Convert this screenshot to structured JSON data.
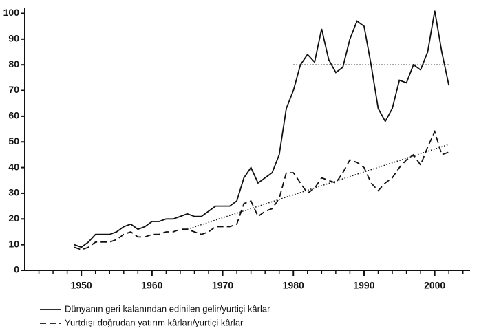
{
  "chart_data": {
    "type": "line",
    "x": [
      1949,
      1950,
      1951,
      1952,
      1953,
      1954,
      1955,
      1956,
      1957,
      1958,
      1959,
      1960,
      1961,
      1962,
      1963,
      1964,
      1965,
      1966,
      1967,
      1968,
      1969,
      1970,
      1971,
      1972,
      1973,
      1974,
      1975,
      1976,
      1977,
      1978,
      1979,
      1980,
      1981,
      1982,
      1983,
      1984,
      1985,
      1986,
      1987,
      1988,
      1989,
      1990,
      1991,
      1992,
      1993,
      1994,
      1995,
      1996,
      1997,
      1998,
      1999,
      2000,
      2001,
      2002
    ],
    "series": [
      {
        "name": "Dünyanın geri kalanından edinilen gelir/yurtiçi kârlar",
        "color": "#111111",
        "dash": "solid",
        "values": [
          10,
          9,
          11,
          14,
          14,
          14,
          15,
          17,
          18,
          16,
          17,
          19,
          19,
          20,
          20,
          21,
          22,
          21,
          21,
          23,
          25,
          25,
          25,
          27,
          36,
          40,
          34,
          36,
          38,
          45,
          63,
          70,
          80,
          84,
          81,
          94,
          82,
          77,
          79,
          90,
          97,
          95,
          80,
          63,
          58,
          63,
          74,
          73,
          80,
          78,
          85,
          101,
          85,
          72
        ]
      },
      {
        "name": "Yurtdışı doğrudan yatırım kârları/yurtiçi kârlar",
        "color": "#111111",
        "dash": "dashed",
        "values": [
          9,
          8,
          9,
          11,
          11,
          11,
          12,
          14,
          15,
          13,
          13,
          14,
          14,
          15,
          15,
          16,
          16,
          15,
          14,
          15,
          17,
          17,
          17,
          18,
          26,
          27,
          21,
          23,
          24,
          28,
          38,
          38,
          34,
          30,
          32,
          36,
          35,
          34,
          38,
          43,
          42,
          40,
          34,
          31,
          34,
          36,
          40,
          43,
          45,
          41,
          48,
          54,
          45,
          46
        ]
      }
    ],
    "trend_lines": [
      {
        "x": [
          1980,
          2002
        ],
        "values": [
          80,
          80
        ],
        "color": "#111111"
      },
      {
        "x": [
          1965,
          2002
        ],
        "values": [
          16,
          49
        ],
        "color": "#111111"
      }
    ],
    "xlim": [
      1942,
      2005
    ],
    "ylim": [
      0,
      102
    ],
    "xticks": [
      1950,
      1960,
      1970,
      1980,
      1990,
      2000
    ],
    "xticks_minor": [
      1944,
      1946,
      1948,
      1950,
      1952,
      1954,
      1956,
      1958,
      1960,
      1962,
      1964,
      1966,
      1968,
      1970,
      1972,
      1974,
      1976,
      1978,
      1980,
      1982,
      1984,
      1986,
      1988,
      1990,
      1992,
      1994,
      1996,
      1998,
      2000,
      2002,
      2004
    ],
    "yticks": [
      0,
      10,
      20,
      30,
      40,
      50,
      60,
      70,
      80,
      90,
      100
    ],
    "grid": false,
    "legend": "bottom"
  }
}
